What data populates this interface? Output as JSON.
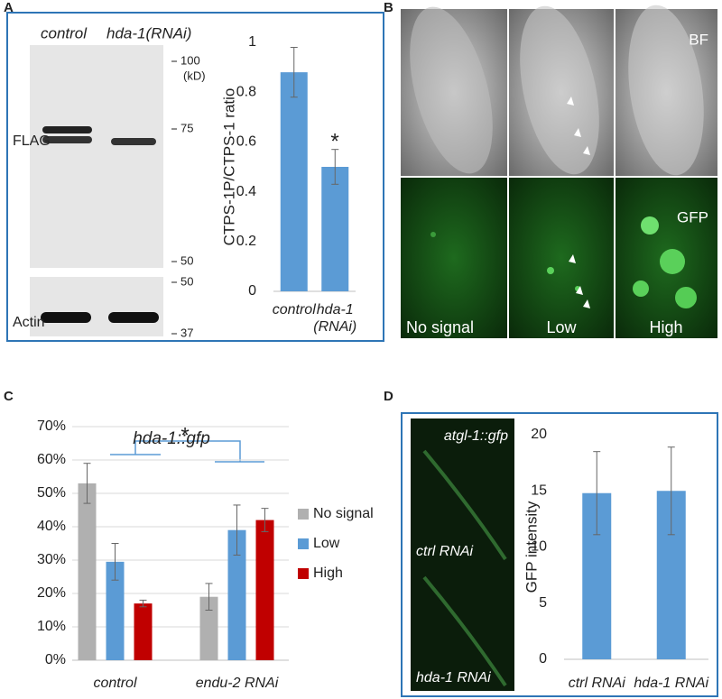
{
  "panel_labels": [
    "A",
    "B",
    "C",
    "D"
  ],
  "blot": {
    "column_labels": [
      "control",
      "hda-1(RNAi)"
    ],
    "row_labels": [
      "FLAG",
      "Actin"
    ],
    "markers": [
      "100",
      "(kD)",
      "75",
      "50",
      "50",
      "37"
    ]
  },
  "micrographs": {
    "row_labels": [
      "BF",
      "GFP"
    ],
    "column_labels": [
      "No signal",
      "Low",
      "High"
    ]
  },
  "worm_image": {
    "labels": [
      "atgl-1::gfp",
      "ctrl RNAi",
      "hda-1 RNAi"
    ]
  },
  "chart_data": [
    {
      "type": "bar",
      "ylabel": "CTPS-1P/CTPS-1 ratio",
      "categories": [
        "control",
        "hda-1 (RNAi)"
      ],
      "values": [
        0.88,
        0.5
      ],
      "errors": [
        0.1,
        0.07
      ],
      "color": "#5b9bd5",
      "ylim": [
        0,
        1
      ],
      "yticks": [
        0,
        0.2,
        0.4,
        0.6,
        0.8,
        1
      ],
      "annotation": "*",
      "grid": false
    },
    {
      "type": "bar",
      "title": "hda-1::gfp",
      "categories": [
        "control",
        "endu-2 RNAi"
      ],
      "series": [
        {
          "name": "No signal",
          "color": "#b0b0b0",
          "values": [
            53,
            19
          ],
          "errors": [
            6,
            4
          ]
        },
        {
          "name": "Low",
          "color": "#5b9bd5",
          "values": [
            29.5,
            39
          ],
          "errors": [
            5.5,
            7.5
          ]
        },
        {
          "name": "High",
          "color": "#c00000",
          "values": [
            17,
            42
          ],
          "errors": [
            1,
            3.5
          ]
        }
      ],
      "ylim": [
        0,
        70
      ],
      "yticks": [
        {
          "value": 0,
          "label": "0%"
        },
        {
          "value": 10,
          "label": "10%"
        },
        {
          "value": 20,
          "label": "20%"
        },
        {
          "value": 30,
          "label": "30%"
        },
        {
          "value": 40,
          "label": "40%"
        },
        {
          "value": 50,
          "label": "50%"
        },
        {
          "value": 60,
          "label": "60%"
        },
        {
          "value": 70,
          "label": "70%"
        }
      ],
      "annotation": "*",
      "grid": true
    },
    {
      "type": "bar",
      "ylabel": "GFP intensity",
      "categories": [
        "ctrl RNAi",
        "hda-1 RNAi"
      ],
      "values": [
        14.8,
        15.0
      ],
      "errors": [
        3.7,
        3.9
      ],
      "color": "#5b9bd5",
      "ylim": [
        0,
        20
      ],
      "yticks": [
        0,
        5,
        10,
        15,
        20
      ],
      "grid": false
    }
  ]
}
